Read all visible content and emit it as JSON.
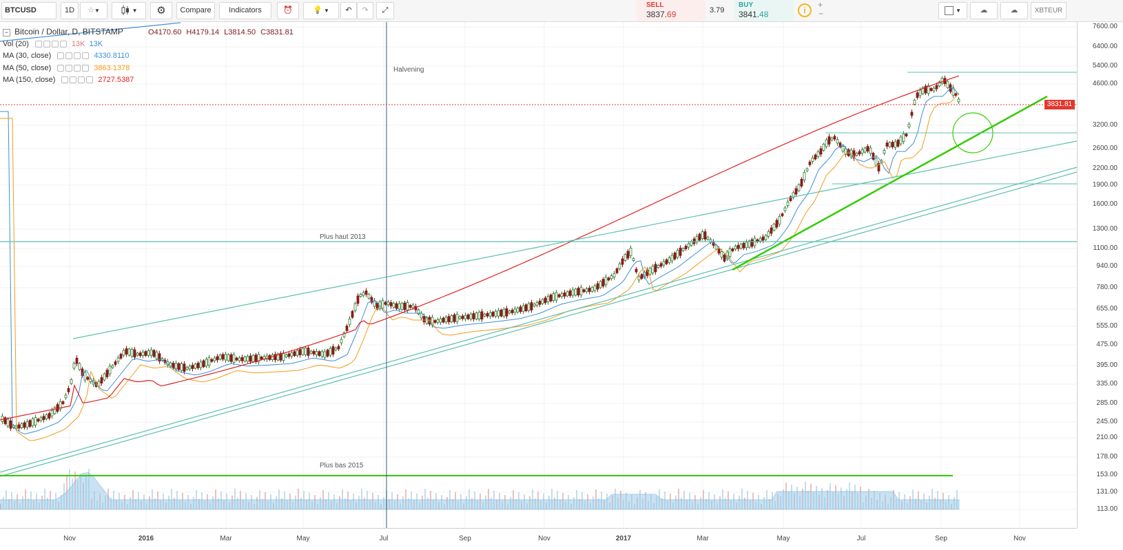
{
  "toolbar": {
    "symbol": "BTCUSD",
    "interval": "1D",
    "compare_label": "Compare",
    "indicators_label": "Indicators",
    "sell_label": "SELL",
    "sell_price_main": "3837.",
    "sell_price_tail": "69",
    "spread": "3.79",
    "buy_label": "BUY",
    "buy_price_main": "3841.",
    "buy_price_tail": "48",
    "second_symbol": "XBTEUR"
  },
  "legend": {
    "title": "Bitcoin / Dollar, D, BITSTAMP",
    "open": "O4170.60",
    "high": "H4179.14",
    "low": "L3814.50",
    "close": "C3831.81",
    "indicators": [
      {
        "label": "Vol (20)",
        "values": [
          "13K",
          "13K"
        ],
        "colors": [
          "#e07a7a",
          "#3d8fd6"
        ]
      },
      {
        "label": "MA (30, close)",
        "values": [
          "4330.8110"
        ],
        "colors": [
          "#3d8fd6"
        ]
      },
      {
        "label": "MA (50, close)",
        "values": [
          "3863.1378"
        ],
        "colors": [
          "#f29b1b"
        ]
      },
      {
        "label": "MA (150, close)",
        "values": [
          "2727.5387"
        ],
        "colors": [
          "#e02020"
        ]
      }
    ]
  },
  "annotations": {
    "halvening": "Halvening",
    "plus_haut": "Plus haut 2013",
    "plus_bas": "Plus bas 2015"
  },
  "price_tag": "3831.81",
  "y_axis_ticks": [
    "7600.00",
    "6400.00",
    "5400.00",
    "4600.00",
    "3831.81",
    "3200.00",
    "2600.00",
    "2200.00",
    "1900.00",
    "1600.00",
    "1300.00",
    "1100.00",
    "940.00",
    "780.00",
    "655.00",
    "555.00",
    "475.00",
    "395.00",
    "335.00",
    "285.00",
    "245.00",
    "210.00",
    "178.00",
    "153.00",
    "131.00",
    "113.00"
  ],
  "x_axis_ticks": [
    {
      "label": "Nov",
      "bold": false
    },
    {
      "label": "2016",
      "bold": true
    },
    {
      "label": "Mar",
      "bold": false
    },
    {
      "label": "May",
      "bold": false
    },
    {
      "label": "Jul",
      "bold": false
    },
    {
      "label": "Sep",
      "bold": false
    },
    {
      "label": "Nov",
      "bold": false
    },
    {
      "label": "2017",
      "bold": true
    },
    {
      "label": "Mar",
      "bold": false
    },
    {
      "label": "May",
      "bold": false
    },
    {
      "label": "Jul",
      "bold": false
    },
    {
      "label": "Sep",
      "bold": false
    },
    {
      "label": "Nov",
      "bold": false
    }
  ],
  "colors": {
    "accent_sell": "#e0392f",
    "accent_buy": "#26a69a",
    "ma30": "#3d8fd6",
    "ma50": "#f29b1b",
    "ma150": "#e02020",
    "trendline": "#33cc00",
    "channel": "#5bbfae",
    "candle_up": "#2f7d32",
    "candle_down": "#8b1a1a",
    "volume": "#9ccbe8"
  }
}
